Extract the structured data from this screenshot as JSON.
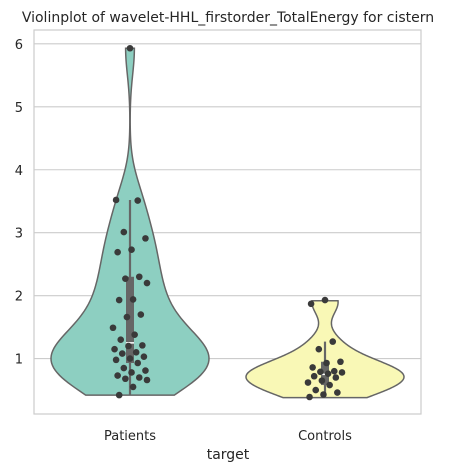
{
  "chart_data": {
    "type": "violin",
    "title": "Violinplot of wavelet-HHL_firstorder_TotalEnergy for cistern",
    "xlabel": "target",
    "ylabel": "",
    "categories": [
      "Patients",
      "Controls"
    ],
    "yticks": [
      1,
      2,
      3,
      4,
      5,
      6
    ],
    "ylim": [
      0.12,
      6.22
    ],
    "grid": true,
    "series": [
      {
        "category": "Patients",
        "color": "#8dcfc1",
        "quartiles": [
          0.93,
          1.25,
          2.3
        ],
        "whisker": [
          0.42,
          3.52
        ],
        "violin_range": [
          0.42,
          5.93
        ],
        "points": [
          5.93,
          3.52,
          3.51,
          3.01,
          2.91,
          2.73,
          2.69,
          2.3,
          2.27,
          2.2,
          1.94,
          1.93,
          1.7,
          1.66,
          1.49,
          1.38,
          1.3,
          1.21,
          1.2,
          1.15,
          1.1,
          1.08,
          1.03,
          1.0,
          0.98,
          0.93,
          0.85,
          0.81,
          0.78,
          0.73,
          0.7,
          0.68,
          0.66,
          0.55,
          0.42
        ]
      },
      {
        "category": "Controls",
        "color": "#f9f8b6",
        "quartiles": [
          0.58,
          0.75,
          0.95
        ],
        "whisker": [
          0.38,
          1.27
        ],
        "violin_range": [
          0.38,
          1.92
        ],
        "points": [
          1.93,
          1.87,
          1.27,
          1.15,
          0.95,
          0.93,
          0.86,
          0.8,
          0.79,
          0.78,
          0.76,
          0.72,
          0.7,
          0.65,
          0.62,
          0.58,
          0.5,
          0.46,
          0.43,
          0.39
        ]
      }
    ]
  }
}
